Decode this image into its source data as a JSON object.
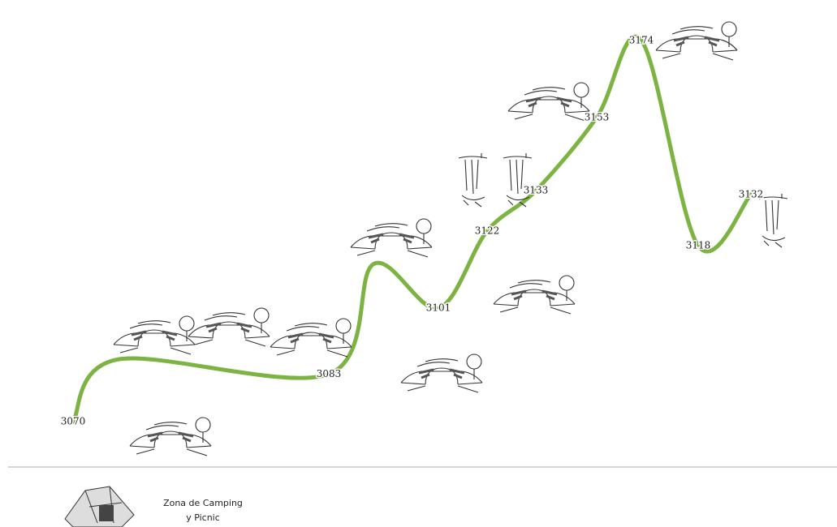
{
  "chart_data": {
    "type": "line",
    "x": [
      9,
      14.5,
      40.5,
      46,
      54,
      60,
      66,
      73.5,
      79,
      86,
      92.5
    ],
    "values": [
      3070,
      3087,
      3083,
      3113,
      3101,
      3122,
      3133,
      3153,
      3174,
      3118,
      3132
    ],
    "value_labels": [
      "3070",
      null,
      "3083",
      null,
      "3101",
      "3122",
      "3133",
      "3153",
      "3174",
      "3118",
      "3132"
    ],
    "color": "#7cb342",
    "xlim": [
      0,
      103
    ],
    "ylim": [
      3059,
      3185
    ],
    "annotations": [
      "Zona de Camping",
      "y Picnic"
    ]
  }
}
